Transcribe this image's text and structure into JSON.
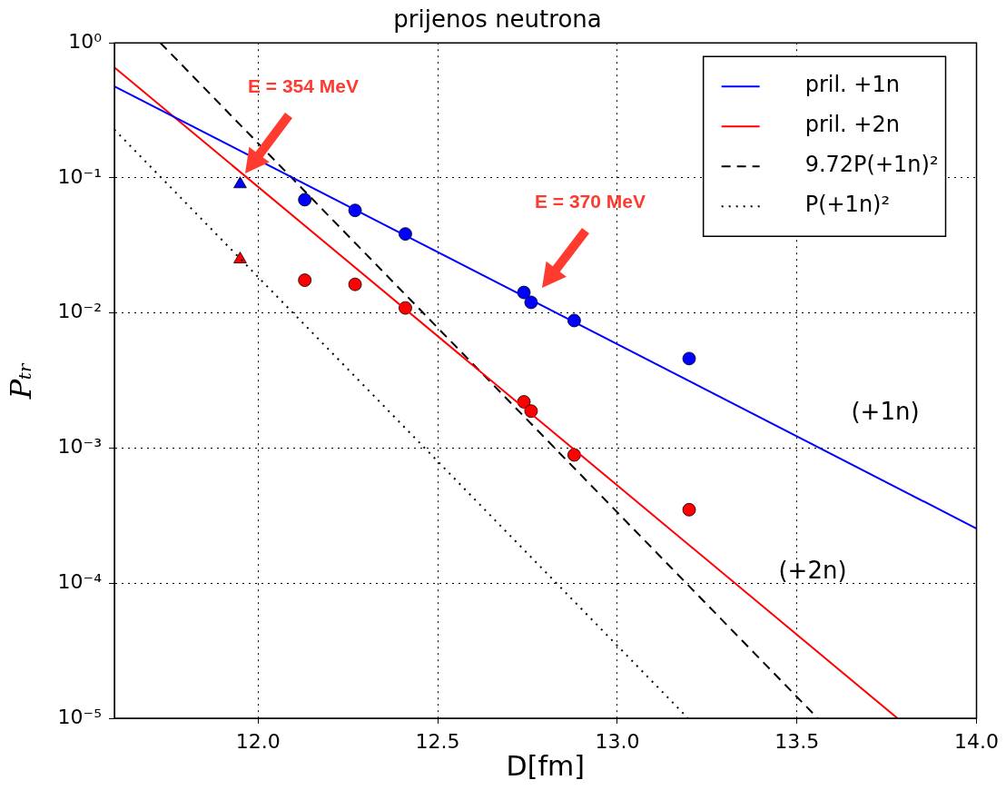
{
  "chart_data": {
    "type": "line",
    "title": "prijenos neutrona",
    "xlabel": "D[fm]",
    "ylabel": "Pₜᵣ",
    "xlim": [
      11.6,
      14.0
    ],
    "xticks": [
      {
        "value": 12,
        "label": "12.0"
      },
      {
        "value": 12.5,
        "label": "12.5"
      },
      {
        "value": 13,
        "label": "13.0"
      },
      {
        "value": 13.5,
        "label": "13.5"
      },
      {
        "value": 14,
        "label": "14.0"
      }
    ],
    "ylim": [
      1e-05,
      1
    ],
    "yticks": [
      {
        "value": 1,
        "label": "10⁰"
      },
      {
        "value": 0.1,
        "label": "10⁻¹"
      },
      {
        "value": 0.01,
        "label": "10⁻²"
      },
      {
        "value": 0.001,
        "label": "10⁻³"
      },
      {
        "value": 0.0001,
        "label": "10⁻⁴"
      },
      {
        "value": 1e-05,
        "label": "10⁻⁵"
      }
    ],
    "log": "y",
    "grid": true,
    "legend": "top right",
    "series": [
      {
        "name": "pril. +1n",
        "color": "#0000ff",
        "line_style": "solid",
        "marker": "none",
        "x": [
          11.6,
          14.0
        ],
        "values": [
          0.477,
          0.000254
        ]
      },
      {
        "name": "pril. +2n",
        "color": "#ff0000",
        "line_style": "solid",
        "marker": "none",
        "x": [
          11.6,
          13.78
        ],
        "values": [
          0.658,
          1e-05
        ]
      },
      {
        "name": "9.72P(+1n)²",
        "color": "#000000",
        "line_style": "dashed",
        "marker": "none",
        "x": [
          11.728,
          13.558
        ],
        "values": [
          1,
          1e-05
        ]
      },
      {
        "name": "P(+1n)²",
        "color": "#000000",
        "line_style": "dotted",
        "marker": "none",
        "x": [
          11.6,
          13.197
        ],
        "values": [
          0.228,
          1e-05
        ]
      },
      {
        "type": "scatter",
        "color": "#0000ff",
        "marker": "triangle",
        "x": [
          11.95
        ],
        "values": [
          0.09
        ]
      },
      {
        "type": "scatter",
        "color": "#0000ff",
        "marker": "circle",
        "x": [
          12.13,
          12.27,
          12.41,
          12.74,
          12.76,
          12.88,
          13.2
        ],
        "values": [
          0.069,
          0.0575,
          0.0385,
          0.0142,
          0.012,
          0.0088,
          0.0046
        ]
      },
      {
        "type": "scatter",
        "color": "#ff0000",
        "marker": "triangle",
        "x": [
          11.95
        ],
        "values": [
          0.025
        ]
      },
      {
        "type": "scatter",
        "color": "#ff0000",
        "marker": "circle",
        "x": [
          12.13,
          12.27,
          12.41,
          12.74,
          12.76,
          12.88,
          13.2
        ],
        "values": [
          0.0175,
          0.0163,
          0.0109,
          0.0022,
          0.00188,
          0.00089,
          0.00035
        ]
      }
    ],
    "annotations": [
      "E = 354 MeV",
      "E = 370 MeV",
      "(+1n)",
      "(+2n)"
    ]
  }
}
